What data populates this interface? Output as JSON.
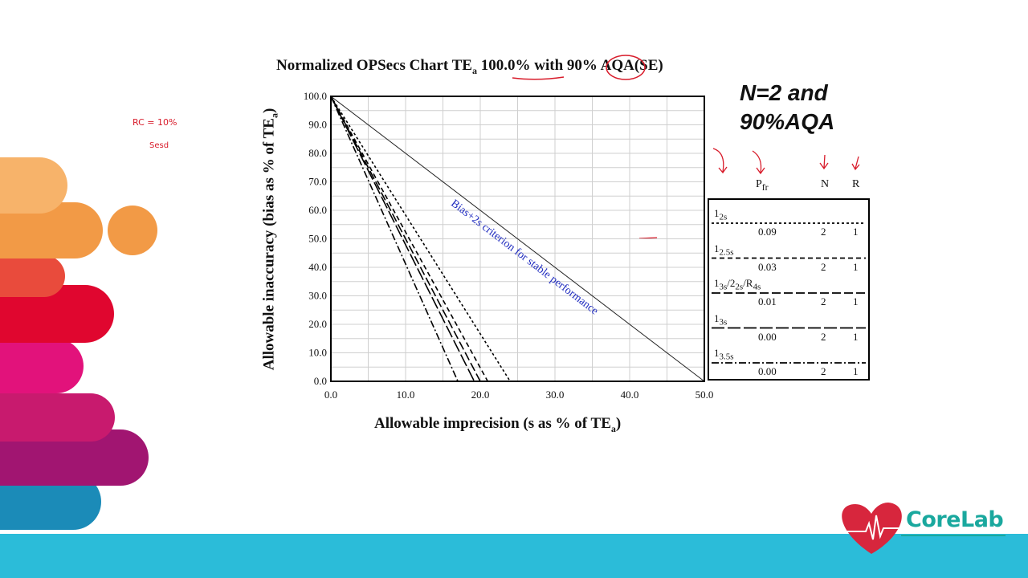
{
  "chart_data": {
    "type": "line",
    "title_pre": "Normalized OPSecs Chart TE",
    "title_sub": "a",
    "title_post": " 100.0% with 90% AQA(SE)",
    "xlabel_pre": "Allowable imprecision (s as % of TE",
    "xlabel_sub": "a",
    "xlabel_post": ")",
    "ylabel_pre": "Allowable inaccuracy (bias as % of TE",
    "ylabel_sub": "a",
    "ylabel_post": ")",
    "xlim": [
      0,
      50
    ],
    "ylim": [
      0,
      100
    ],
    "xticks": [
      "0.0",
      "10.0",
      "20.0",
      "30.0",
      "40.0",
      "50.0"
    ],
    "yticks": [
      "0.0",
      "10.0",
      "20.0",
      "30.0",
      "40.0",
      "50.0",
      "60.0",
      "70.0",
      "80.0",
      "90.0",
      "100.0"
    ],
    "grid": true,
    "criterion_line": {
      "x": [
        0,
        50
      ],
      "y": [
        100,
        0
      ],
      "label": "Bias+2s criterion for stable performance"
    },
    "series": [
      {
        "rule_main": "1",
        "rule_sub": "2s",
        "dash": "dotted",
        "pfr": "0.09",
        "n": "2",
        "r": "1",
        "x": [
          0,
          24
        ]
      },
      {
        "rule_main": "1",
        "rule_sub": "2.5s",
        "dash": "short-dash",
        "pfr": "0.03",
        "n": "2",
        "r": "1",
        "x": [
          0,
          21
        ]
      },
      {
        "rule_main": "1",
        "rule_sub": "3s",
        "rule_mid": "/2",
        "rule_mid_sub": "2s",
        "rule_tail": "/R",
        "rule_tail_sub": "4s",
        "dash": "long-dash",
        "pfr": "0.01",
        "n": "2",
        "r": "1",
        "x": [
          0,
          20
        ]
      },
      {
        "rule_main": "1",
        "rule_sub": "3s",
        "dash": "very-long-dash",
        "pfr": "0.00",
        "n": "2",
        "r": "1",
        "x": [
          0,
          19.2
        ]
      },
      {
        "rule_main": "1",
        "rule_sub": "3.5s",
        "dash": "dash-dot",
        "pfr": "0.00",
        "n": "2",
        "r": "1",
        "x": [
          0,
          17
        ]
      }
    ],
    "legend": {
      "header_pfr_main": "P",
      "header_pfr_sub": "fr",
      "header_n": "N",
      "header_r": "R",
      "position": "right"
    }
  },
  "callout": {
    "line1": "N=2 and",
    "line2": "90%AQA"
  },
  "handnotes": {
    "rc": "RC =  10%",
    "sesd": "Sesd"
  },
  "brand": {
    "name": "CoreLab"
  },
  "colors": {
    "criterion_text": "#1f2bbf",
    "annotation_red": "#d81b2a",
    "band": "#2bbcd9",
    "brand_text": "#1aa89e",
    "brand_heart": "#d7263d"
  }
}
